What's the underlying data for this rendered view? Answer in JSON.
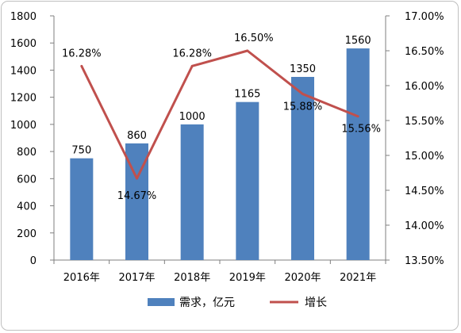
{
  "chart_data": {
    "type": "bar",
    "categories": [
      "2016年",
      "2017年",
      "2018年",
      "2019年",
      "2020年",
      "2021年"
    ],
    "series": [
      {
        "name": "需求，亿元",
        "type": "bar",
        "axis": "left",
        "values": [
          750,
          860,
          1000,
          1165,
          1350,
          1560
        ],
        "labels": [
          "750",
          "860",
          "1000",
          "1165",
          "1350",
          "1560"
        ],
        "color": "#4f81bd"
      },
      {
        "name": "增长",
        "type": "line",
        "axis": "right",
        "values": [
          16.28,
          14.67,
          16.28,
          16.5,
          15.88,
          15.56
        ],
        "labels": [
          "16.28%",
          "14.67%",
          "16.28%",
          "16.50%",
          "15.88%",
          "15.56%"
        ],
        "color": "#c0504d"
      }
    ],
    "y_left": {
      "lim": [
        0,
        1800
      ],
      "ticks": [
        "0",
        "200",
        "400",
        "600",
        "800",
        "1000",
        "1200",
        "1400",
        "1600",
        "1800"
      ]
    },
    "y_right": {
      "lim": [
        13.5,
        17.0
      ],
      "ticks": [
        "13.50%",
        "14.00%",
        "14.50%",
        "15.00%",
        "15.50%",
        "16.00%",
        "16.50%",
        "17.00%"
      ]
    },
    "grid": false,
    "legend": "bottom"
  }
}
